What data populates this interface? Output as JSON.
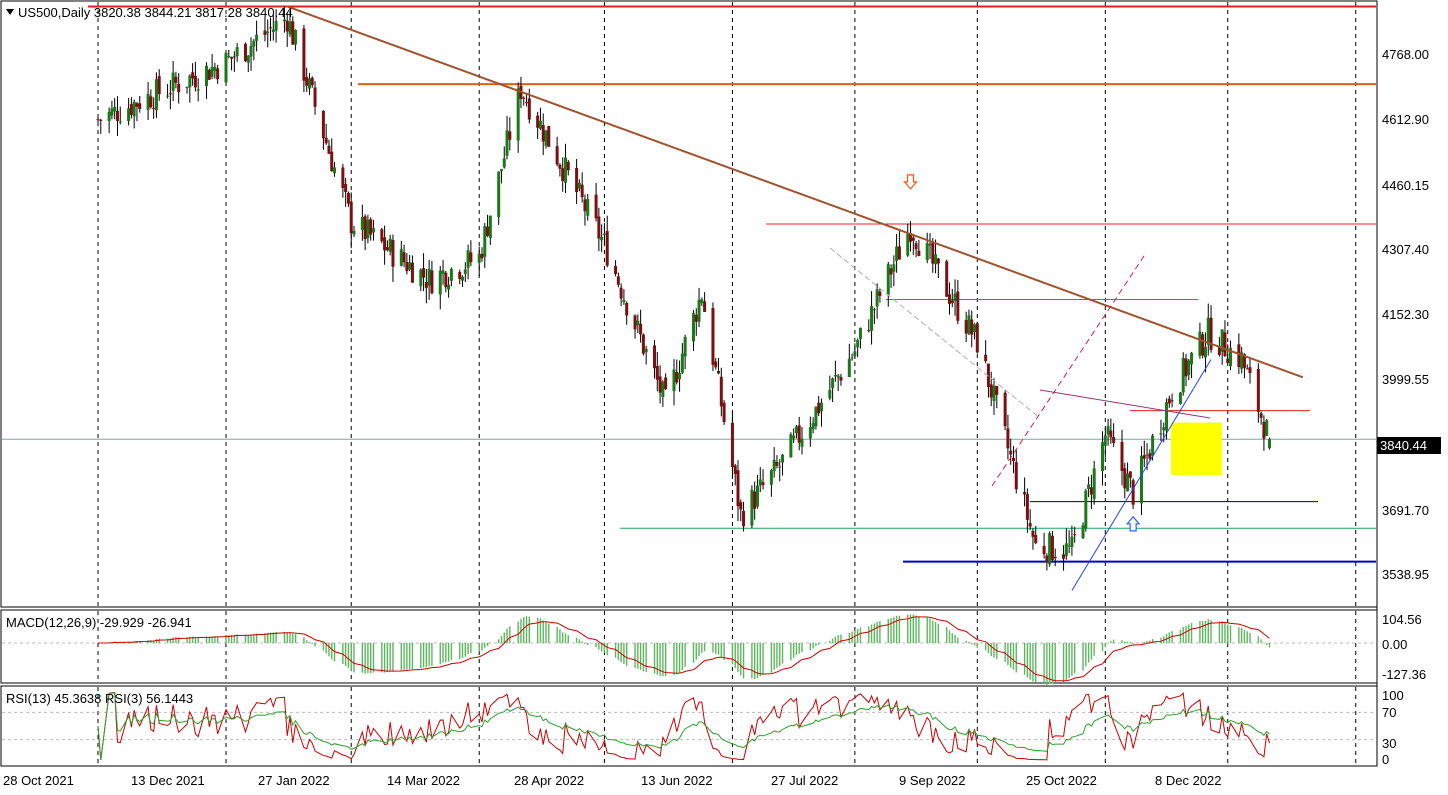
{
  "header": {
    "symbol_line": "US500,Daily  3820.38 3844.21 3817.28 3840.44"
  },
  "price_axis": {
    "ticks": [
      "4768.00",
      "4612.90",
      "4460.15",
      "4307.40",
      "4152.30",
      "3999.55",
      "3840.44",
      "3691.70",
      "3538.95"
    ],
    "current": "3840.44"
  },
  "date_axis": {
    "labels": [
      "28 Oct 2021",
      "13 Dec 2021",
      "27 Jan 2022",
      "14 Mar 2022",
      "28 Apr 2022",
      "13 Jun 2022",
      "27 Jul 2022",
      "9 Sep 2022",
      "25 Oct 2022",
      "8 Dec 2022"
    ]
  },
  "macd_panel": {
    "title": "MACD(12,26,9) -29.929 -26.941",
    "ticks": [
      "104.56",
      "0.00",
      "-127.36"
    ]
  },
  "rsi_panel": {
    "title": "RSI(13) 45.3638  RSI(3) 56.1443",
    "ticks": [
      "100",
      "70",
      "30",
      "0"
    ]
  },
  "colors": {
    "bull": "#1a7a1a",
    "bear": "#7a1010",
    "trend_brown": "#a0522d",
    "resistance_red": "#e02020",
    "resistance_orange": "#e06010",
    "support_blue": "#0000cc",
    "support_green": "#20a060",
    "highlight_yellow": "#ffff00",
    "macd_hist": "#5cb85c",
    "macd_signal": "#cc0000",
    "rsi13": "#2ca02c",
    "rsi3": "#cc0000"
  },
  "chart_data": {
    "type": "candlestick",
    "title": "US500,Daily",
    "x_labels": [
      "28 Oct 2021",
      "13 Dec 2021",
      "27 Jan 2022",
      "14 Mar 2022",
      "28 Apr 2022",
      "13 Jun 2022",
      "27 Jul 2022",
      "9 Sep 2022",
      "25 Oct 2022",
      "8 Dec 2022"
    ],
    "ylim": [
      3465,
      4825
    ],
    "last_bar": {
      "open": 3820.38,
      "high": 3844.21,
      "low": 3817.28,
      "close": 3840.44
    },
    "anchor_closes": [
      {
        "date": "28 Oct 2021",
        "close": 4560
      },
      {
        "date": "13 Dec 2021",
        "close": 4690
      },
      {
        "date": "04 Jan 2022",
        "close": 4790
      },
      {
        "date": "27 Jan 2022",
        "close": 4330
      },
      {
        "date": "24 Feb 2022",
        "close": 4200
      },
      {
        "date": "14 Mar 2022",
        "close": 4250
      },
      {
        "date": "29 Mar 2022",
        "close": 4630
      },
      {
        "date": "28 Apr 2022",
        "close": 4280
      },
      {
        "date": "20 May 2022",
        "close": 3920
      },
      {
        "date": "02 Jun 2022",
        "close": 4170
      },
      {
        "date": "16 Jun 2022",
        "close": 3670
      },
      {
        "date": "30 Jun 2022",
        "close": 3780
      },
      {
        "date": "27 Jul 2022",
        "close": 4040
      },
      {
        "date": "16 Aug 2022",
        "close": 4320
      },
      {
        "date": "09 Sep 2022",
        "close": 4060
      },
      {
        "date": "30 Sep 2022",
        "close": 3600
      },
      {
        "date": "13 Oct 2022",
        "close": 3590
      },
      {
        "date": "25 Oct 2022",
        "close": 3850
      },
      {
        "date": "04 Nov 2022",
        "close": 3720
      },
      {
        "date": "18 Nov 2022",
        "close": 3950
      },
      {
        "date": "01 Dec 2022",
        "close": 4080
      },
      {
        "date": "13 Dec 2022",
        "close": 4020
      },
      {
        "date": "23 Dec 2022",
        "close": 3840
      }
    ],
    "horizontal_levels": [
      {
        "value": 4815
      },
      {
        "value": 4640
      },
      {
        "value": 4325
      },
      {
        "value": 4155
      },
      {
        "value": 3905
      },
      {
        "value": 3840.44
      },
      {
        "value": 3700
      },
      {
        "value": 3640
      },
      {
        "value": 3565
      }
    ],
    "trendlines": [
      {
        "from": {
          "date": "04 Jan 2022",
          "value": 4815
        },
        "to": {
          "date": "04 Jan 2023",
          "value": 3980
        }
      },
      {
        "from": {
          "date": "13 Oct 2022",
          "value": 3500
        },
        "to": {
          "date": "02 Dec 2022",
          "value": 4020
        }
      }
    ],
    "arrows": [
      {
        "direction": "down",
        "date": "16 Aug 2022",
        "value": 4420
      },
      {
        "direction": "up",
        "date": "04 Nov 2022",
        "value": 3650
      }
    ],
    "macd": {
      "ylim": [
        -127.36,
        104.56
      ],
      "last": -29.929,
      "signal_last": -26.941
    },
    "rsi": {
      "ylim": [
        0,
        100
      ],
      "levels": [
        70,
        30
      ],
      "rsi13_last": 45.3638,
      "rsi3_last": 56.1443
    }
  }
}
